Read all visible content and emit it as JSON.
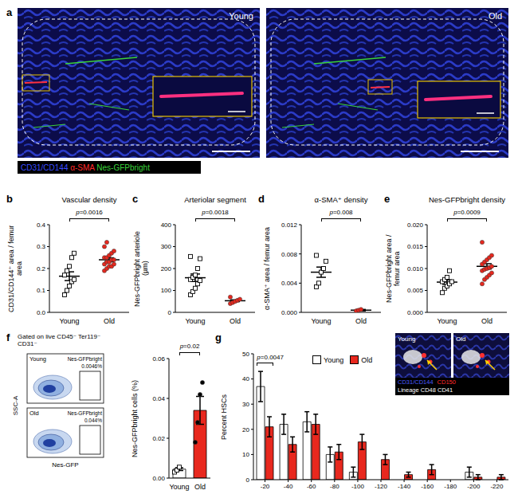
{
  "chart_data": [
    {
      "panel": "b",
      "type": "dot",
      "title": "Vascular density",
      "y_label": "CD31/CD144⁺ area / femur area",
      "ylim": [
        0,
        0.4
      ],
      "yticks": [
        {
          "value": 0,
          "label": "0.0"
        },
        0.1,
        0.2,
        0.3,
        0.4
      ],
      "annotation": "p=0.0016",
      "series": [
        {
          "name": "Young",
          "color": "#000000",
          "marker": "open_square",
          "values": [
            0.08,
            0.1,
            0.12,
            0.14,
            0.15,
            0.17,
            0.19,
            0.21,
            0.25,
            0.27
          ],
          "mean": 0.165,
          "error": 0.02
        },
        {
          "name": "Old",
          "color": "#e8281e",
          "marker": "circle",
          "values": [
            0.19,
            0.2,
            0.21,
            0.21,
            0.22,
            0.22,
            0.23,
            0.23,
            0.24,
            0.24,
            0.25,
            0.25,
            0.26,
            0.27,
            0.28,
            0.3,
            0.32
          ],
          "mean": 0.24,
          "error": 0.009
        }
      ]
    },
    {
      "panel": "c",
      "type": "dot",
      "title": "Arteriolar segment",
      "y_label": "Nes-GFPbright arteriole (µm)",
      "ylim": [
        0,
        400
      ],
      "yticks": [
        0,
        100,
        200,
        300,
        400
      ],
      "annotation": "p=0.0018",
      "series": [
        {
          "name": "Young",
          "color": "#000000",
          "marker": "open_square",
          "values": [
            80,
            95,
            110,
            130,
            145,
            150,
            160,
            170,
            200,
            245,
            255
          ],
          "mean": 158,
          "error": 17
        },
        {
          "name": "Old",
          "color": "#e8281e",
          "marker": "circle",
          "values": [
            40,
            45,
            50,
            55,
            60,
            70
          ],
          "mean": 53,
          "error": 4
        }
      ]
    },
    {
      "panel": "d",
      "type": "dot",
      "title": "α-SMA⁺ density",
      "y_label": "α-SMA⁺ area / femur area",
      "ylim": [
        0,
        0.012
      ],
      "yticks": [
        {
          "value": 0,
          "label": "0.000"
        },
        0.004,
        0.008,
        0.012
      ],
      "annotation": "p=0.008",
      "series": [
        {
          "name": "Young",
          "color": "#000000",
          "marker": "open_square",
          "values": [
            0.0035,
            0.004,
            0.0055,
            0.006,
            0.007,
            0.0078
          ],
          "mean": 0.0055,
          "error": 0.0007
        },
        {
          "name": "Old",
          "color": "#e8281e",
          "marker": "circle",
          "values": [
            0.0002,
            0.0003,
            0.0004
          ],
          "mean": 0.0003,
          "error": 0.0001
        }
      ]
    },
    {
      "panel": "e",
      "type": "dot",
      "title": "Nes-GFPbright density",
      "y_label": "Nes-GFPbright area / femur area",
      "ylim": [
        0,
        0.02
      ],
      "yticks": [
        {
          "value": 0,
          "label": "0.000"
        },
        0.005,
        {
          "value": 0.01,
          "label": "0.010"
        },
        0.015,
        {
          "value": 0.02,
          "label": "0.020"
        }
      ],
      "annotation": "p=0.0009",
      "series": [
        {
          "name": "Young",
          "color": "#000000",
          "marker": "open_square",
          "values": [
            0.0045,
            0.0055,
            0.006,
            0.0065,
            0.007,
            0.007,
            0.0075,
            0.008,
            0.0095
          ],
          "mean": 0.0069,
          "error": 0.0005
        },
        {
          "name": "Old",
          "color": "#e8281e",
          "marker": "circle",
          "values": [
            0.0065,
            0.0075,
            0.008,
            0.0085,
            0.009,
            0.0095,
            0.0098,
            0.01,
            0.0102,
            0.0105,
            0.011,
            0.0115,
            0.012,
            0.0125,
            0.013,
            0.016
          ],
          "mean": 0.0105,
          "error": 0.0006
        }
      ]
    },
    {
      "panel": "f",
      "type": "bar",
      "y_label": "Nes-GFPbright cells (%)",
      "ylim": [
        0,
        0.06
      ],
      "yticks": [
        {
          "value": 0,
          "label": "0.00"
        },
        0.02,
        0.04,
        0.06
      ],
      "annotation": "p=0.02",
      "series": [
        {
          "name": "Young",
          "color": "#ffffff",
          "marker": "open_square",
          "values": [
            0.003,
            0.004,
            0.0055
          ],
          "mean": 0.0045,
          "error": 0.0007
        },
        {
          "name": "Old",
          "color": "#e8281e",
          "marker": "circle",
          "values": [
            0.018,
            0.028,
            0.042,
            0.048
          ],
          "mean": 0.034,
          "error": 0.007
        }
      ]
    },
    {
      "panel": "g",
      "type": "bar",
      "y_label": "Percent HSCs",
      "categories": [
        "-20",
        "-40",
        "-60",
        "-80",
        "-100",
        "-120",
        "-140",
        "-160",
        "-180",
        "-200",
        "-220"
      ],
      "ylim": [
        0,
        50
      ],
      "yticks": [
        0,
        10,
        20,
        30,
        40,
        50
      ],
      "legend": "top",
      "annotation": "p=0.0047",
      "series": [
        {
          "name": "Young",
          "color": "#ffffff",
          "values": [
            37,
            22,
            23,
            10,
            3,
            0,
            0,
            0,
            0,
            3,
            0
          ],
          "error": [
            6,
            4,
            4,
            3,
            2,
            0,
            0,
            0,
            0,
            2,
            0
          ]
        },
        {
          "name": "Old",
          "color": "#e8281e",
          "values": [
            21,
            14,
            22,
            11,
            15,
            8,
            2,
            4,
            0,
            1,
            1
          ],
          "error": [
            4,
            3,
            4,
            3,
            3,
            2,
            1,
            2,
            0,
            1,
            1
          ]
        }
      ]
    }
  ],
  "image_panels": {
    "a": {
      "panel": "a",
      "images": [
        "Young",
        "Old"
      ],
      "channels": [
        {
          "text": "CD31/CD144",
          "color": "#3b4cff"
        },
        {
          "text": "α-SMA",
          "color": "#ff2a2a"
        },
        {
          "text": "Nes-GFPbright",
          "color": "#3ad23a"
        }
      ]
    },
    "f_flow": {
      "gate_label": "Gated on live CD45⁻ Ter119⁻ CD31⁻",
      "x_label": "Nes-GFP",
      "y_label": "SSC-A",
      "plots": [
        {
          "label": "Young",
          "gate": "Nes-GFPbright",
          "percent": "0.0046%"
        },
        {
          "label": "Old",
          "gate": "Nes-GFPbright",
          "percent": "0.044%"
        }
      ]
    },
    "g_insets": {
      "images": [
        "Young",
        "Old"
      ],
      "channels": [
        {
          "text": "CD31/CD144",
          "color": "#4a5cff"
        },
        {
          "text": "CD150",
          "color": "#ff2a2a"
        },
        {
          "text": "Lineage CD48 CD41",
          "color": "#ffffff"
        }
      ]
    }
  }
}
